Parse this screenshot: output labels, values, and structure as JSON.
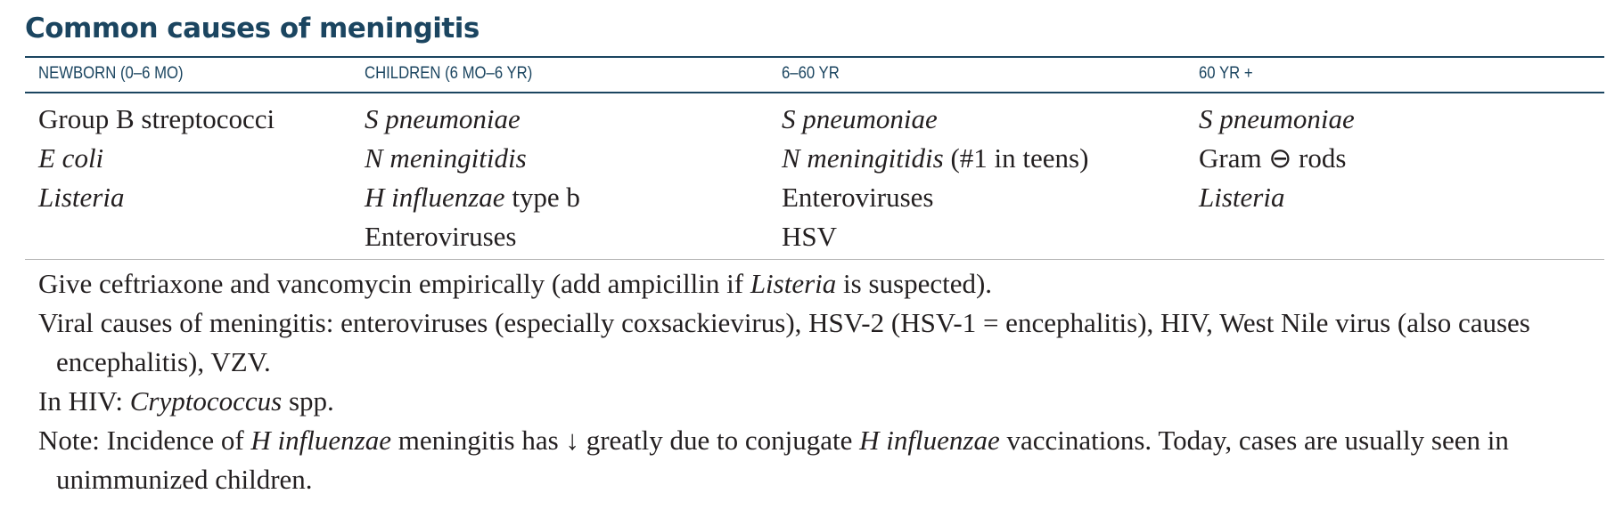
{
  "title": "Common causes of meningitis",
  "columns": [
    {
      "header": "NEWBORN (0–6 MO)",
      "entries": [
        {
          "italic": "",
          "normal": "Group B streptococci"
        },
        {
          "italic": "E coli",
          "normal": ""
        },
        {
          "italic": "Listeria",
          "normal": ""
        }
      ]
    },
    {
      "header": "CHILDREN (6 MO–6 YR)",
      "entries": [
        {
          "italic": "S pneumoniae",
          "normal": ""
        },
        {
          "italic": "N meningitidis",
          "normal": ""
        },
        {
          "italic": "H influenzae",
          "normal": " type b"
        },
        {
          "italic": "",
          "normal": "Enteroviruses"
        }
      ]
    },
    {
      "header": "6–60 YR",
      "entries": [
        {
          "italic": "S pneumoniae",
          "normal": ""
        },
        {
          "italic": "N meningitidis",
          "normal": " (#1 in teens)"
        },
        {
          "italic": "",
          "normal": "Enteroviruses"
        },
        {
          "italic": "",
          "normal": "HSV"
        }
      ]
    },
    {
      "header": "60 YR +",
      "entries": [
        {
          "italic": "S pneumoniae",
          "normal": ""
        },
        {
          "italic": "",
          "normal": "Gram ⊖ rods"
        },
        {
          "italic": "Listeria",
          "normal": ""
        }
      ]
    }
  ],
  "notes": {
    "line1_a": "Give ceftriaxone and vancomycin empirically (add ampicillin if ",
    "line1_b": "Listeria",
    "line1_c": " is suspected).",
    "line2": "Viral causes of meningitis: enteroviruses (especially coxsackievirus), HSV-2 (HSV-1 = encephalitis), HIV, West Nile virus (also causes encephalitis), VZV.",
    "line3_a": "In HIV: ",
    "line3_b": "Cryptococcus",
    "line3_c": " spp.",
    "line4_a": "Note: Incidence of ",
    "line4_b": "H influenzae",
    "line4_c": " meningitis has ↓ greatly due to conjugate ",
    "line4_d": "H influenzae",
    "line4_e": " vaccinations. Today, cases are usually seen in unimmunized children."
  }
}
